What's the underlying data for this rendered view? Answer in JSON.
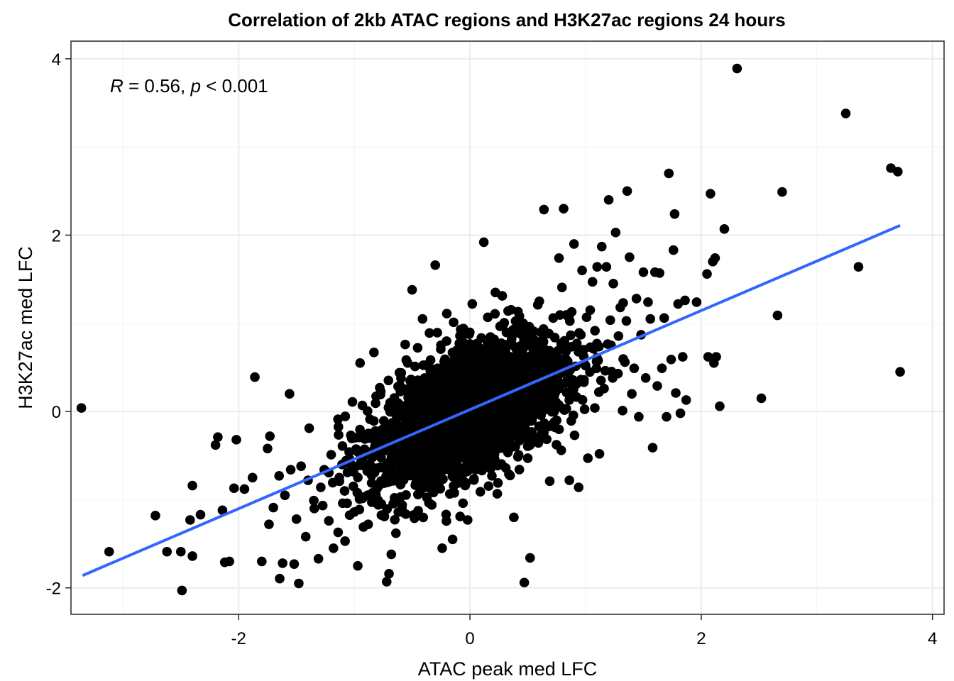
{
  "chart_data": {
    "type": "scatter",
    "title": "Correlation of 2kb ATAC regions and H3K27ac regions 24 hours",
    "xlabel": "ATAC peak med LFC",
    "ylabel": "H3K27ac med LFC",
    "xlim": [
      -3.45,
      4.1
    ],
    "ylim": [
      -2.3,
      4.2
    ],
    "x_ticks": [
      -2,
      0,
      2,
      4
    ],
    "y_ticks": [
      -2,
      0,
      2,
      4
    ],
    "x_tick_labels": [
      "-2",
      "0",
      "2",
      "4"
    ],
    "y_tick_labels": [
      "-2",
      "0",
      "2",
      "4"
    ],
    "grid": true,
    "point_color": "#000000",
    "fit_line": {
      "color": "#3366FF",
      "x": [
        -3.35,
        3.72
      ],
      "y": [
        -1.86,
        2.11
      ]
    },
    "annotation": {
      "r_symbol": "R",
      "r_value": " = 0.56, ",
      "p_symbol": "p",
      "p_value": " < 0.001"
    },
    "dense_core": {
      "approx_count": 2500,
      "x_mean": 0.0,
      "y_mean": 0.0,
      "x_sd": 0.42,
      "y_sd": 0.42,
      "correlation": 0.56
    },
    "points": [
      {
        "x": -3.36,
        "y": 0.04
      },
      {
        "x": -3.12,
        "y": -1.59
      },
      {
        "x": -2.72,
        "y": -1.18
      },
      {
        "x": -2.62,
        "y": -1.59
      },
      {
        "x": -2.5,
        "y": -1.59
      },
      {
        "x": -2.49,
        "y": -2.03
      },
      {
        "x": -2.42,
        "y": -1.23
      },
      {
        "x": -2.4,
        "y": -1.64
      },
      {
        "x": -2.4,
        "y": -0.84
      },
      {
        "x": -2.33,
        "y": -1.17
      },
      {
        "x": -2.2,
        "y": -0.38
      },
      {
        "x": -2.18,
        "y": -0.29
      },
      {
        "x": -2.14,
        "y": -1.12
      },
      {
        "x": -2.12,
        "y": -1.71
      },
      {
        "x": -2.08,
        "y": -1.7
      },
      {
        "x": -2.04,
        "y": -0.87
      },
      {
        "x": -2.02,
        "y": -0.32
      },
      {
        "x": -1.95,
        "y": -0.88
      },
      {
        "x": -1.88,
        "y": -0.75
      },
      {
        "x": -1.86,
        "y": 0.39
      },
      {
        "x": -1.8,
        "y": -1.7
      },
      {
        "x": -1.75,
        "y": -0.42
      },
      {
        "x": -1.73,
        "y": -0.28
      },
      {
        "x": -1.7,
        "y": -1.09
      },
      {
        "x": -1.65,
        "y": -0.73
      },
      {
        "x": -1.62,
        "y": -1.72
      },
      {
        "x": -1.6,
        "y": -0.95
      },
      {
        "x": -1.56,
        "y": 0.2
      },
      {
        "x": -1.55,
        "y": -0.66
      },
      {
        "x": -1.52,
        "y": -1.73
      },
      {
        "x": -1.5,
        "y": -1.22
      },
      {
        "x": -1.48,
        "y": -1.95
      },
      {
        "x": -1.46,
        "y": -0.62
      },
      {
        "x": -1.42,
        "y": -1.42
      },
      {
        "x": -1.4,
        "y": -0.78
      },
      {
        "x": -1.39,
        "y": -0.19
      },
      {
        "x": -1.35,
        "y": -1.01
      },
      {
        "x": -1.31,
        "y": -1.67
      },
      {
        "x": -1.29,
        "y": -0.86
      },
      {
        "x": -1.26,
        "y": -0.66
      },
      {
        "x": -1.22,
        "y": -1.24
      },
      {
        "x": -1.2,
        "y": -0.49
      },
      {
        "x": -1.18,
        "y": -1.55
      },
      {
        "x": -1.14,
        "y": -1.37
      },
      {
        "x": -1.13,
        "y": -0.75
      },
      {
        "x": -1.1,
        "y": -1.04
      },
      {
        "x": -1.08,
        "y": -1.47
      },
      {
        "x": -1.06,
        "y": -0.58
      },
      {
        "x": -1.03,
        "y": -0.27
      },
      {
        "x": -1.0,
        "y": -1.14
      },
      {
        "x": -0.97,
        "y": -1.75
      },
      {
        "x": -0.96,
        "y": -0.61
      },
      {
        "x": -0.95,
        "y": 0.55
      },
      {
        "x": -0.92,
        "y": -0.97
      },
      {
        "x": -0.88,
        "y": -1.28
      },
      {
        "x": -0.85,
        "y": -0.81
      },
      {
        "x": -0.83,
        "y": 0.67
      },
      {
        "x": -0.8,
        "y": -0.39
      },
      {
        "x": -0.78,
        "y": 0.27
      },
      {
        "x": -0.74,
        "y": -1.19
      },
      {
        "x": -0.72,
        "y": -1.93
      },
      {
        "x": -0.7,
        "y": -1.84
      },
      {
        "x": -0.69,
        "y": 0.1
      },
      {
        "x": -0.68,
        "y": -1.62
      },
      {
        "x": -0.66,
        "y": -0.36
      },
      {
        "x": -0.64,
        "y": -1.38
      },
      {
        "x": -0.61,
        "y": 0.44
      },
      {
        "x": -0.6,
        "y": -0.97
      },
      {
        "x": -0.56,
        "y": 0.76
      },
      {
        "x": -0.53,
        "y": -0.55
      },
      {
        "x": -0.5,
        "y": 1.38
      },
      {
        "x": -0.48,
        "y": -1.21
      },
      {
        "x": -0.45,
        "y": 0.32
      },
      {
        "x": -0.43,
        "y": -0.86
      },
      {
        "x": -0.41,
        "y": 1.05
      },
      {
        "x": -0.38,
        "y": -0.12
      },
      {
        "x": -0.35,
        "y": 0.89
      },
      {
        "x": -0.33,
        "y": -1.06
      },
      {
        "x": -0.3,
        "y": 1.66
      },
      {
        "x": -0.28,
        "y": 0.49
      },
      {
        "x": -0.24,
        "y": -1.55
      },
      {
        "x": -0.23,
        "y": -0.63
      },
      {
        "x": -0.2,
        "y": 1.11
      },
      {
        "x": -0.18,
        "y": 0.22
      },
      {
        "x": -0.15,
        "y": -1.45
      },
      {
        "x": -0.12,
        "y": 0.58
      },
      {
        "x": -0.1,
        "y": -0.81
      },
      {
        "x": -0.08,
        "y": 0.93
      },
      {
        "x": -0.06,
        "y": -1.04
      },
      {
        "x": -0.04,
        "y": 0.07
      },
      {
        "x": -0.02,
        "y": -1.23
      },
      {
        "x": 0.0,
        "y": 0.35
      },
      {
        "x": 0.02,
        "y": 1.22
      },
      {
        "x": 0.04,
        "y": -0.44
      },
      {
        "x": 0.06,
        "y": 0.77
      },
      {
        "x": 0.09,
        "y": -0.91
      },
      {
        "x": 0.1,
        "y": 0.12
      },
      {
        "x": 0.12,
        "y": 1.92
      },
      {
        "x": 0.14,
        "y": -0.26
      },
      {
        "x": 0.17,
        "y": 0.62
      },
      {
        "x": 0.19,
        "y": -0.73
      },
      {
        "x": 0.22,
        "y": 1.35
      },
      {
        "x": 0.24,
        "y": -0.12
      },
      {
        "x": 0.27,
        "y": 0.47
      },
      {
        "x": 0.31,
        "y": -0.64
      },
      {
        "x": 0.33,
        "y": 1.14
      },
      {
        "x": 0.35,
        "y": 0.19
      },
      {
        "x": 0.38,
        "y": -1.2
      },
      {
        "x": 0.4,
        "y": 0.71
      },
      {
        "x": 0.43,
        "y": -0.33
      },
      {
        "x": 0.45,
        "y": 0.96
      },
      {
        "x": 0.47,
        "y": -1.94
      },
      {
        "x": 0.48,
        "y": 0.4
      },
      {
        "x": 0.5,
        "y": -0.53
      },
      {
        "x": 0.52,
        "y": -1.66
      },
      {
        "x": 0.54,
        "y": 0.83
      },
      {
        "x": 0.57,
        "y": 0.04
      },
      {
        "x": 0.6,
        "y": 1.25
      },
      {
        "x": 0.62,
        "y": -0.25
      },
      {
        "x": 0.64,
        "y": 2.29
      },
      {
        "x": 0.66,
        "y": 0.57
      },
      {
        "x": 0.69,
        "y": -0.79
      },
      {
        "x": 0.72,
        "y": 1.06
      },
      {
        "x": 0.74,
        "y": 0.22
      },
      {
        "x": 0.77,
        "y": 1.74
      },
      {
        "x": 0.79,
        "y": -0.44
      },
      {
        "x": 0.81,
        "y": 2.3
      },
      {
        "x": 0.83,
        "y": 0.68
      },
      {
        "x": 0.86,
        "y": -0.78
      },
      {
        "x": 0.88,
        "y": 1.13
      },
      {
        "x": 0.9,
        "y": 1.9
      },
      {
        "x": 0.92,
        "y": 0.31
      },
      {
        "x": 0.94,
        "y": -0.86
      },
      {
        "x": 0.97,
        "y": 1.6
      },
      {
        "x": 1.0,
        "y": 0.52
      },
      {
        "x": 1.02,
        "y": -0.53
      },
      {
        "x": 1.04,
        "y": 1.15
      },
      {
        "x": 1.06,
        "y": 1.47
      },
      {
        "x": 1.08,
        "y": 0.04
      },
      {
        "x": 1.1,
        "y": 1.64
      },
      {
        "x": 1.12,
        "y": -0.48
      },
      {
        "x": 1.14,
        "y": 1.87
      },
      {
        "x": 1.16,
        "y": 0.26
      },
      {
        "x": 1.18,
        "y": 1.64
      },
      {
        "x": 1.2,
        "y": 2.4
      },
      {
        "x": 1.22,
        "y": 0.75
      },
      {
        "x": 1.24,
        "y": 1.45
      },
      {
        "x": 1.26,
        "y": 2.03
      },
      {
        "x": 1.28,
        "y": 0.43
      },
      {
        "x": 1.3,
        "y": 1.18
      },
      {
        "x": 1.32,
        "y": 0.01
      },
      {
        "x": 1.34,
        "y": 0.56
      },
      {
        "x": 1.36,
        "y": 2.5
      },
      {
        "x": 1.38,
        "y": 1.75
      },
      {
        "x": 1.4,
        "y": 0.2
      },
      {
        "x": 1.42,
        "y": 0.49
      },
      {
        "x": 1.44,
        "y": 1.28
      },
      {
        "x": 1.46,
        "y": -0.06
      },
      {
        "x": 1.48,
        "y": 0.87
      },
      {
        "x": 1.5,
        "y": 1.58
      },
      {
        "x": 1.52,
        "y": 0.38
      },
      {
        "x": 1.54,
        "y": 1.24
      },
      {
        "x": 1.56,
        "y": 1.05
      },
      {
        "x": 1.58,
        "y": -0.41
      },
      {
        "x": 1.6,
        "y": 1.58
      },
      {
        "x": 1.62,
        "y": 0.29
      },
      {
        "x": 1.64,
        "y": 1.57
      },
      {
        "x": 1.66,
        "y": 0.49
      },
      {
        "x": 1.68,
        "y": 1.06
      },
      {
        "x": 1.7,
        "y": -0.06
      },
      {
        "x": 1.72,
        "y": 2.7
      },
      {
        "x": 1.74,
        "y": 0.59
      },
      {
        "x": 1.76,
        "y": 1.83
      },
      {
        "x": 1.77,
        "y": 2.24
      },
      {
        "x": 1.78,
        "y": 0.21
      },
      {
        "x": 1.8,
        "y": 1.22
      },
      {
        "x": 1.82,
        "y": -0.02
      },
      {
        "x": 1.84,
        "y": 0.62
      },
      {
        "x": 1.86,
        "y": 1.26
      },
      {
        "x": 1.87,
        "y": 0.13
      },
      {
        "x": 1.96,
        "y": 1.24
      },
      {
        "x": 2.05,
        "y": 1.56
      },
      {
        "x": 2.06,
        "y": 0.62
      },
      {
        "x": 2.08,
        "y": 2.47
      },
      {
        "x": 2.1,
        "y": 1.7
      },
      {
        "x": 2.11,
        "y": 0.55
      },
      {
        "x": 2.12,
        "y": 1.74
      },
      {
        "x": 2.13,
        "y": 0.62
      },
      {
        "x": 2.16,
        "y": 0.06
      },
      {
        "x": 2.2,
        "y": 2.07
      },
      {
        "x": 2.31,
        "y": 3.89
      },
      {
        "x": 2.52,
        "y": 0.15
      },
      {
        "x": 2.66,
        "y": 1.09
      },
      {
        "x": 2.7,
        "y": 2.49
      },
      {
        "x": 3.25,
        "y": 3.38
      },
      {
        "x": 3.36,
        "y": 1.64
      },
      {
        "x": 3.64,
        "y": 2.76
      },
      {
        "x": 3.7,
        "y": 2.72
      },
      {
        "x": 3.72,
        "y": 0.45
      }
    ]
  }
}
